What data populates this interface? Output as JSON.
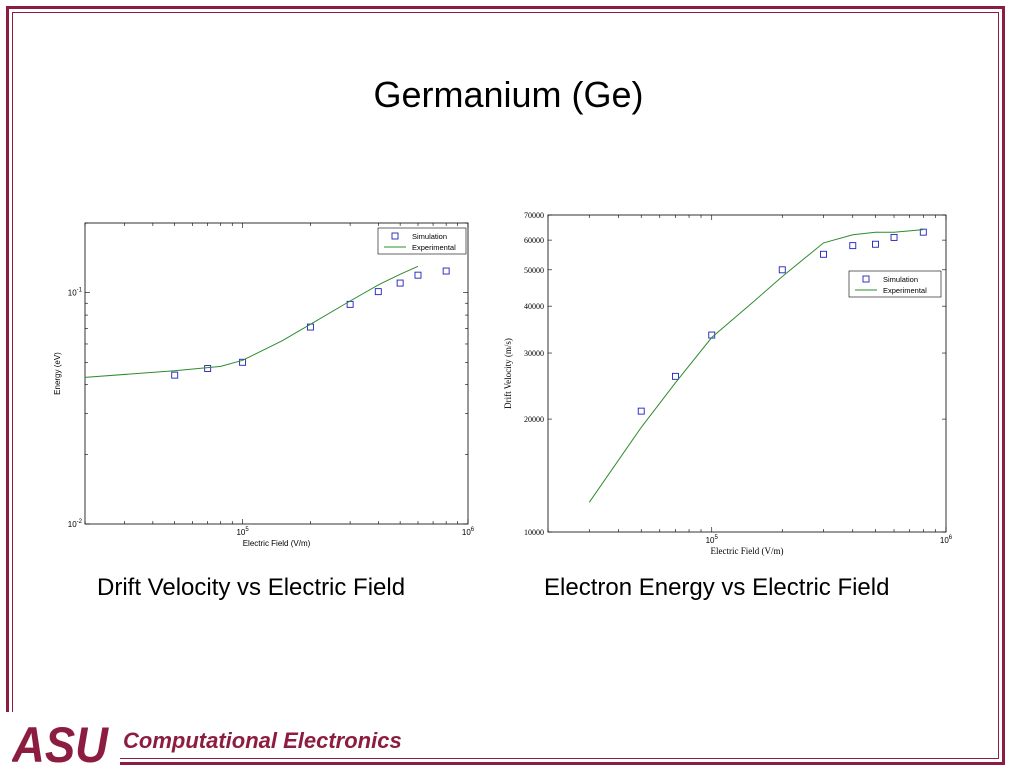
{
  "slide": {
    "title": "Germanium (Ge)",
    "caption_left": "Drift Velocity vs Electric Field",
    "caption_right": "Electron Energy vs Electric Field",
    "footer": "Computational Electronics",
    "logo_text": "ASU",
    "brand_color": "#8c1d40"
  },
  "chart_data": [
    {
      "type": "scatter+line",
      "xlabel": "Electric Field (V/m)",
      "ylabel": "Energy (eV)",
      "xscale": "log",
      "yscale": "log",
      "xlim": [
        20000,
        1000000
      ],
      "ylim": [
        0.01,
        0.2
      ],
      "xtick_labels": [
        "10^5",
        "10^6"
      ],
      "ytick_labels": [
        "10^-2",
        "10^-1"
      ],
      "legend_position": "top-right",
      "grid": false,
      "series": [
        {
          "name": "Simulation",
          "style": "square-markers",
          "color": "#1f1fbf",
          "x": [
            50000,
            70000,
            100000,
            200000,
            300000,
            400000,
            500000,
            600000,
            800000
          ],
          "y": [
            0.044,
            0.047,
            0.05,
            0.071,
            0.089,
            0.101,
            0.11,
            0.119,
            0.124
          ]
        },
        {
          "name": "Experimental",
          "style": "line",
          "color": "#2e8b2e",
          "x": [
            20000,
            50000,
            80000,
            100000,
            150000,
            200000,
            300000,
            400000,
            500000,
            600000
          ],
          "y": [
            0.043,
            0.046,
            0.048,
            0.051,
            0.062,
            0.073,
            0.092,
            0.108,
            0.12,
            0.13
          ]
        }
      ]
    },
    {
      "type": "scatter+line",
      "xlabel": "Electric Field (V/m)",
      "ylabel": "Drift Velocity (m/s)",
      "xscale": "log",
      "yscale": "log",
      "xlim": [
        20000,
        1000000
      ],
      "ylim": [
        10000,
        70000
      ],
      "xtick_labels": [
        "10^5",
        "10^6"
      ],
      "ytick_values": [
        10000,
        20000,
        30000,
        40000,
        50000,
        60000,
        70000
      ],
      "ytick_labels": [
        "10000",
        "20000",
        "30000",
        "40000",
        "50000",
        "60000",
        "70000"
      ],
      "legend_position": "upper-right",
      "grid": false,
      "series": [
        {
          "name": "Simulation",
          "style": "square-markers",
          "color": "#1f1fbf",
          "x": [
            50000,
            70000,
            100000,
            200000,
            300000,
            400000,
            500000,
            600000,
            800000
          ],
          "y": [
            21000,
            26000,
            33500,
            50000,
            55000,
            58000,
            58500,
            61000,
            63000
          ]
        },
        {
          "name": "Experimental",
          "style": "line",
          "color": "#2e8b2e",
          "x": [
            30000,
            50000,
            70000,
            100000,
            150000,
            200000,
            300000,
            400000,
            500000,
            600000,
            800000
          ],
          "y": [
            12000,
            19000,
            25000,
            33000,
            41000,
            48000,
            59000,
            62000,
            63000,
            63000,
            64000
          ]
        }
      ]
    }
  ]
}
